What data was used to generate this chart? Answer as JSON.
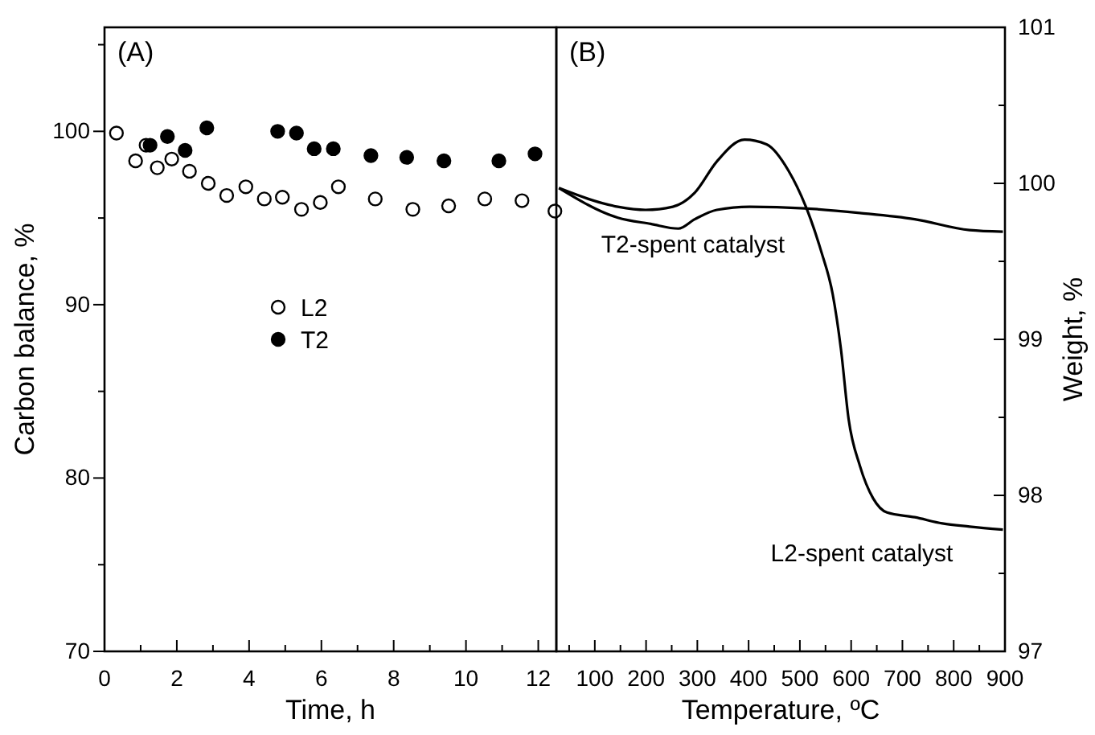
{
  "chart_data": [
    {
      "type": "scatter",
      "xlabel": "Time, h",
      "ylabel": "Carbon balance, %",
      "annotations": [
        "(A)"
      ],
      "xlim": [
        0,
        12.5
      ],
      "ylim": [
        70,
        106
      ],
      "xticks": [
        0,
        {
          "value": 1,
          "label": null
        },
        2,
        {
          "value": 3,
          "label": null
        },
        4,
        {
          "value": 5,
          "label": null
        },
        6,
        {
          "value": 7,
          "label": null
        },
        8,
        {
          "value": 9,
          "label": null
        },
        10,
        {
          "value": 11,
          "label": null
        },
        12
      ],
      "yticks": [
        70,
        {
          "value": 75,
          "label": null
        },
        80,
        {
          "value": 85,
          "label": null
        },
        90,
        {
          "value": 95,
          "label": null
        },
        100,
        {
          "value": 105,
          "label": null
        }
      ],
      "marker": "circle",
      "legend": "center",
      "grid": false,
      "series": [
        {
          "name": "L2",
          "color": "#ffffff",
          "x": [
            0.33,
            0.86,
            1.15,
            1.46,
            1.86,
            2.35,
            2.87,
            3.38,
            3.91,
            4.42,
            4.92,
            5.45,
            5.97,
            6.47,
            7.49,
            8.53,
            9.52,
            10.52,
            11.55,
            12.46
          ],
          "values": [
            99.9,
            98.3,
            99.2,
            97.9,
            98.4,
            97.7,
            97.0,
            96.3,
            96.8,
            96.1,
            96.2,
            95.5,
            95.9,
            96.8,
            96.1,
            95.5,
            95.7,
            96.1,
            96.0,
            95.4
          ]
        },
        {
          "name": "T2",
          "color": "#000000",
          "x": [
            1.26,
            1.74,
            2.23,
            2.83,
            4.79,
            5.31,
            5.8,
            6.33,
            7.37,
            8.36,
            9.39,
            10.91,
            11.91
          ],
          "values": [
            99.2,
            99.7,
            98.9,
            100.2,
            100.0,
            99.9,
            99.0,
            99.0,
            98.6,
            98.5,
            98.3,
            98.3,
            98.7
          ]
        }
      ]
    },
    {
      "type": "line",
      "xlabel": "Temperature, ºC",
      "y2label": "Weight, %",
      "annotations": [
        "(B)",
        "T2-spent catalyst",
        "L2-spent catalyst"
      ],
      "xlim": [
        25,
        900
      ],
      "y2lim": [
        97,
        101
      ],
      "xticks": [
        {
          "value": 50,
          "label": null
        },
        100,
        {
          "value": 150,
          "label": null
        },
        200,
        {
          "value": 250,
          "label": null
        },
        300,
        {
          "value": 350,
          "label": null
        },
        400,
        {
          "value": 450,
          "label": null
        },
        500,
        {
          "value": 550,
          "label": null
        },
        600,
        {
          "value": 650,
          "label": null
        },
        700,
        {
          "value": 750,
          "label": null
        },
        800,
        {
          "value": 850,
          "label": null
        },
        900
      ],
      "y2ticks": [
        97,
        {
          "value": 97.5,
          "label": null
        },
        98,
        {
          "value": 98.5,
          "label": null
        },
        99,
        {
          "value": 99.5,
          "label": null
        },
        100,
        {
          "value": 100.5,
          "label": null
        },
        101
      ],
      "marker": "none",
      "line_style": "solid",
      "legend": false,
      "grid": false,
      "series": [
        {
          "color": "#000000",
          "axis": "y2",
          "x": [
            30,
            145,
            199,
            252,
            295,
            338,
            392,
            435,
            478,
            521,
            542,
            564,
            580,
            595,
            617,
            643,
            670,
            724,
            778,
            831,
            896
          ],
          "values": [
            99.97,
            99.85,
            99.83,
            99.85,
            99.94,
            100.14,
            100.28,
            100.25,
            100.08,
            99.77,
            99.56,
            99.29,
            98.94,
            98.49,
            98.19,
            97.98,
            97.89,
            97.86,
            97.82,
            97.8,
            97.78
          ]
        },
        {
          "color": "#000000",
          "axis": "y2",
          "x": [
            30,
            145,
            209,
            263,
            295,
            338,
            402,
            509,
            617,
            724,
            831,
            896
          ],
          "values": [
            99.97,
            99.78,
            99.74,
            99.71,
            99.77,
            99.83,
            99.85,
            99.84,
            99.81,
            99.77,
            99.7,
            99.69
          ]
        }
      ]
    }
  ]
}
